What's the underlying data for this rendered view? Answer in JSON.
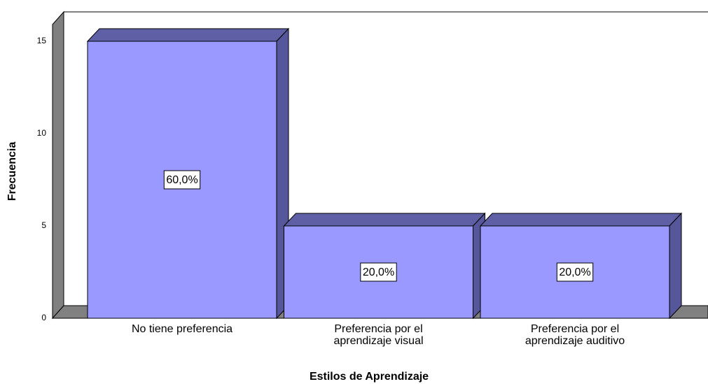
{
  "chart_data": {
    "type": "bar",
    "x_label": "Estilos de Aprendizaje",
    "y_label": "Frecuencia",
    "categories": [
      "No tiene preferencia",
      "Preferencia por el aprendizaje visual",
      "Preferencia por el aprendizaje auditivo"
    ],
    "values": [
      15,
      5,
      5
    ],
    "percentages": [
      60.0,
      20.0,
      20.0
    ],
    "percentage_labels": [
      "60,0%",
      "20,0%",
      "20,0%"
    ],
    "color": "#9999ff",
    "ylim": [
      0,
      16
    ],
    "yticks": [
      0,
      5,
      10,
      15
    ]
  }
}
